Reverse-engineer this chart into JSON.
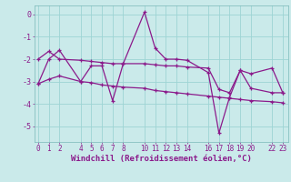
{
  "x": [
    0,
    1,
    2,
    4,
    5,
    6,
    7,
    8,
    10,
    11,
    12,
    13,
    14,
    16,
    17,
    18,
    19,
    20,
    22,
    23
  ],
  "y_main": [
    -3.1,
    -2.0,
    -1.6,
    -3.0,
    -2.3,
    -2.3,
    -3.85,
    -2.2,
    0.1,
    -1.5,
    -2.0,
    -2.0,
    -2.05,
    -2.6,
    -5.3,
    -3.7,
    -2.5,
    -2.65,
    -2.4,
    -3.5
  ],
  "y_upper": [
    -2.0,
    -1.65,
    -2.0,
    -2.05,
    -2.1,
    -2.15,
    -2.2,
    -2.2,
    -2.2,
    -2.25,
    -2.3,
    -2.3,
    -2.35,
    -2.4,
    -3.35,
    -3.5,
    -2.5,
    -3.3,
    -3.5,
    -3.5
  ],
  "y_lower": [
    -3.1,
    -2.9,
    -2.75,
    -3.0,
    -3.05,
    -3.15,
    -3.2,
    -3.25,
    -3.3,
    -3.4,
    -3.45,
    -3.5,
    -3.55,
    -3.65,
    -3.7,
    -3.75,
    -3.8,
    -3.85,
    -3.9,
    -3.95
  ],
  "line_color": "#8B1A8B",
  "bg_color": "#caeaea",
  "grid_color": "#9dd4d4",
  "xlabel": "Windchill (Refroidissement éolien,°C)",
  "ytick_vals": [
    0,
    -1,
    -2,
    -3,
    -4,
    -5
  ],
  "ytick_labels": [
    "0",
    "-1",
    "-2",
    "-3",
    "-4",
    "-5"
  ],
  "xtick_positions": [
    0,
    1,
    2,
    4,
    5,
    6,
    7,
    8,
    10,
    11,
    12,
    13,
    14,
    16,
    17,
    18,
    19,
    20,
    22,
    23
  ],
  "xtick_labels": [
    "0",
    "1",
    "2",
    "4",
    "5",
    "6",
    "7",
    "8",
    "10",
    "11",
    "12",
    "13",
    "14",
    "16",
    "17",
    "18",
    "19",
    "20",
    "22",
    "23"
  ],
  "xlim": [
    -0.3,
    23.5
  ],
  "ylim": [
    -5.7,
    0.4
  ]
}
